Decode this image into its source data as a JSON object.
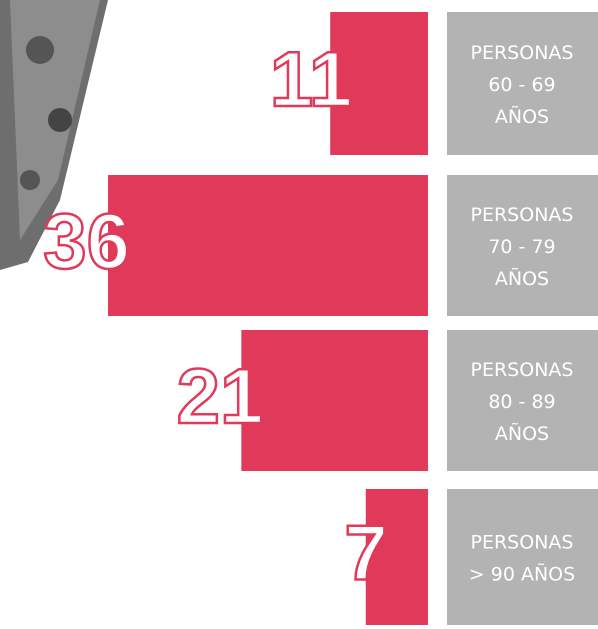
{
  "chart_data": {
    "type": "bar",
    "orientation": "horizontal",
    "color": "#e0395a",
    "label_color": "#b3b3b3",
    "categories": [
      [
        "PERSONAS",
        "60 - 69",
        "AÑOS"
      ],
      [
        "PERSONAS",
        "70 - 79",
        "AÑOS"
      ],
      [
        "PERSONAS",
        "80 - 89",
        "AÑOS"
      ],
      [
        "PERSONAS",
        "> 90 AÑOS"
      ]
    ],
    "values": [
      11,
      36,
      21,
      7
    ]
  }
}
